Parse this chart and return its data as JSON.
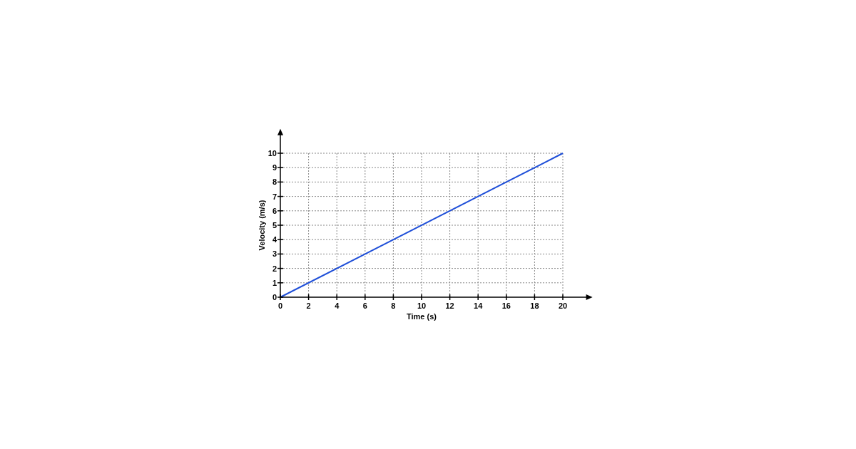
{
  "chart_data": {
    "type": "line",
    "xlabel": "Time (s)",
    "ylabel": "Velocity (m/s)",
    "x": [
      0,
      20
    ],
    "series": [
      {
        "color": "#1f4fd8",
        "values": [
          0,
          10
        ]
      }
    ],
    "xlim": [
      0,
      21.8
    ],
    "ylim": [
      0,
      11.4
    ],
    "xticks": [
      0,
      2,
      4,
      6,
      8,
      10,
      12,
      14,
      16,
      18,
      20
    ],
    "yticks": [
      0,
      1,
      2,
      3,
      4,
      5,
      6,
      7,
      8,
      9,
      10
    ],
    "grid": true,
    "marker": "none",
    "line_style": "solid"
  }
}
